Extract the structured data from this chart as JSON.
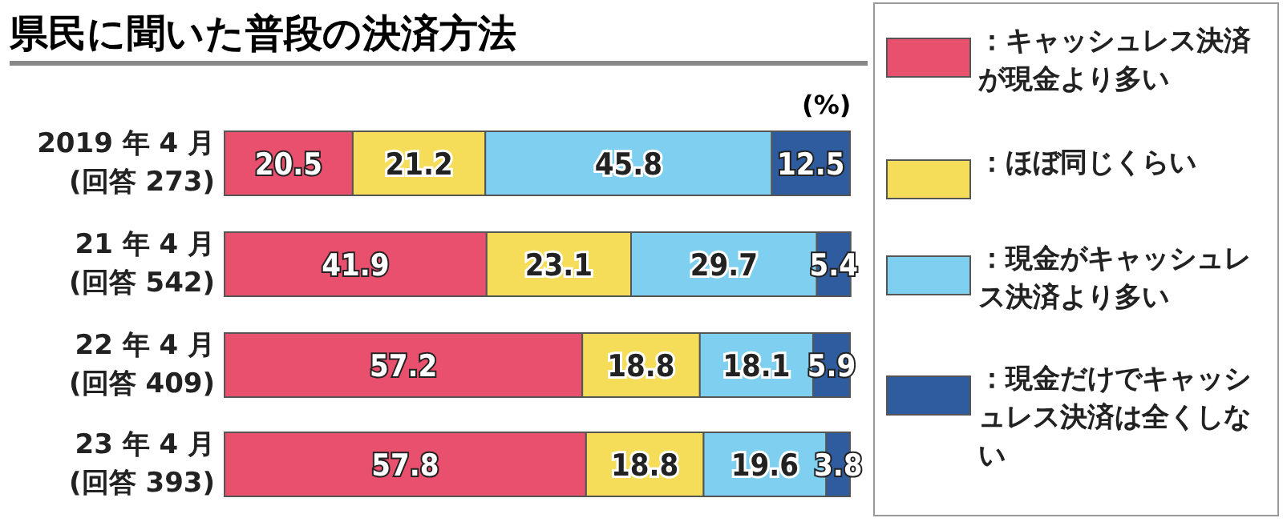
{
  "chart_data": {
    "type": "bar",
    "orientation": "horizontal",
    "stacked": true,
    "title": "県民に聞いた普段の決済方法",
    "categories": [
      "2019 年 4 月 (回答 273)",
      "21 年 4 月 (回答 542)",
      "22 年 4 月 (回答 409)",
      "23 年 4 月 (回答 393)"
    ],
    "series": [
      {
        "name": "：キャッシュレス決済が現金より多い",
        "color": "#e8506e",
        "values": [
          20.5,
          41.9,
          57.2,
          57.8
        ]
      },
      {
        "name": "：ほぼ同じくらい",
        "color": "#f5dd5a",
        "values": [
          21.2,
          23.1,
          18.8,
          18.8
        ]
      },
      {
        "name": "：現金がキャッシュレス決済より多い",
        "color": "#7fd0f0",
        "values": [
          45.8,
          29.7,
          18.1,
          19.6
        ]
      },
      {
        "name": "：現金だけでキャッシュレス決済は全くしない",
        "color": "#2f5c9e",
        "values": [
          12.5,
          5.4,
          5.9,
          3.8
        ]
      }
    ],
    "xlim": [
      0,
      100
    ],
    "data_labels": true,
    "legend": "right",
    "annotations": [
      "(%)"
    ]
  }
}
